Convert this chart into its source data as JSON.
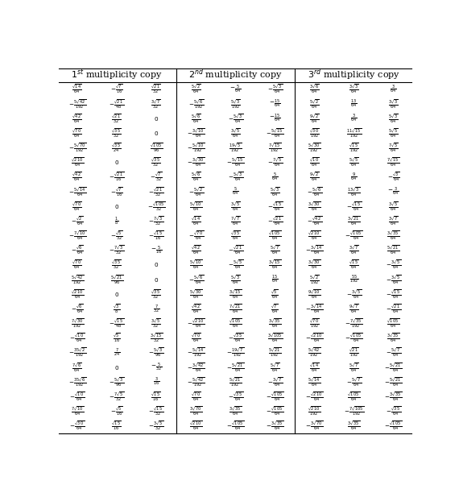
{
  "col_headers": [
    "$1^{st}$ multiplicity copy",
    "$2^{nd}$ multiplicity copy",
    "$3^{rd}$ multiplicity copy"
  ],
  "col1": [
    [
      "\\frac{\\sqrt{14}}{64}",
      "-\\frac{\\sqrt{7}}{16}",
      "\\frac{\\sqrt{21}}{32}"
    ],
    [
      "-\\frac{5\\sqrt{42}}{192}",
      "-\\frac{\\sqrt{21}}{48}",
      "\\frac{3\\sqrt{7}}{32}"
    ],
    [
      "\\frac{\\sqrt{42}}{64}",
      "\\frac{\\sqrt{21}}{32}",
      "0"
    ],
    [
      "\\frac{\\sqrt{70}}{64}",
      "\\frac{\\sqrt{35}}{32}",
      "0"
    ],
    [
      "-\\frac{5\\sqrt{70}}{192}",
      "\\frac{\\sqrt{35}}{24}",
      "\\frac{\\sqrt{105}}{96}"
    ],
    [
      "\\frac{\\sqrt{210}}{64}",
      "0",
      "\\frac{\\sqrt{35}}{32}"
    ],
    [
      "\\frac{\\sqrt{42}}{64}",
      "-\\frac{\\sqrt{21}}{16}",
      "-\\frac{\\sqrt{7}}{32}"
    ],
    [
      "-\\frac{5\\sqrt{14}}{64}",
      "-\\frac{\\sqrt{7}}{16}",
      "-\\frac{\\sqrt{21}}{32}"
    ],
    [
      "\\frac{\\sqrt{70}}{64}",
      "0",
      "-\\frac{\\sqrt{105}}{32}"
    ],
    [
      "-\\frac{\\sqrt{2}}{64}",
      "\\frac{1}{8}",
      "-\\frac{7\\sqrt{3}}{32}"
    ],
    [
      "-\\frac{7\\sqrt{10}}{64}",
      "-\\frac{\\sqrt{5}}{32}",
      "-\\frac{\\sqrt{15}}{16}"
    ],
    [
      "-\\frac{\\sqrt{6}}{64}",
      "-\\frac{7\\sqrt{3}}{32}",
      "-\\frac{5}{16}"
    ],
    [
      "\\frac{\\sqrt{70}}{64}",
      "\\frac{\\sqrt{35}}{32}",
      "0"
    ],
    [
      "\\frac{5\\sqrt{42}}{192}",
      "\\frac{5\\sqrt{21}}{96}",
      "0"
    ],
    [
      "\\frac{\\sqrt{210}}{64}",
      "0",
      "\\frac{\\sqrt{35}}{32}"
    ],
    [
      "-\\frac{\\sqrt{6}}{64}",
      "\\frac{\\sqrt{3}}{8}",
      "\\frac{7}{32}"
    ],
    [
      "\\frac{7\\sqrt{30}}{192}",
      "-\\frac{\\sqrt{15}}{48}",
      "\\frac{3\\sqrt{5}}{32}"
    ],
    [
      "-\\frac{\\sqrt{10}}{64}",
      "\\frac{\\sqrt{5}}{16}",
      "\\frac{3\\sqrt{15}}{32}"
    ],
    [
      "-\\frac{35\\sqrt{2}}{192}",
      "\\frac{7}{24}",
      "-\\frac{5\\sqrt{3}}{96}"
    ],
    [
      "\\frac{7\\sqrt{6}}{64}",
      "0",
      "-\\frac{5}{32}"
    ],
    [
      "-\\frac{35\\sqrt{6}}{192}",
      "-\\frac{5\\sqrt{3}}{96}",
      "\\frac{3}{16}"
    ],
    [
      "-\\frac{\\sqrt{10}}{64}",
      "-\\frac{7\\sqrt{5}}{32}",
      "\\frac{\\sqrt{15}}{16}"
    ],
    [
      "\\frac{7\\sqrt{10}}{64}",
      "-\\frac{\\sqrt{5}}{16}",
      "-\\frac{\\sqrt{15}}{32}"
    ],
    [
      "-\\frac{\\sqrt{30}}{64}",
      "\\frac{\\sqrt{15}}{16}",
      "-\\frac{3\\sqrt{5}}{32}"
    ]
  ],
  "col2": [
    [
      "\\frac{5\\sqrt{2}}{64}",
      "-\\frac{5}{64}",
      "-\\frac{5\\sqrt{3}}{64}"
    ],
    [
      "-\\frac{5\\sqrt{6}}{192}",
      "\\frac{5\\sqrt{3}}{192}",
      "-\\frac{15}{64}"
    ],
    [
      "\\frac{5\\sqrt{6}}{64}",
      "-\\frac{5\\sqrt{3}}{64}",
      "-\\frac{15}{64}"
    ],
    [
      "-\\frac{3\\sqrt{10}}{64}",
      "\\frac{3\\sqrt{5}}{64}",
      "-\\frac{5\\sqrt{15}}{64}"
    ],
    [
      "-\\frac{5\\sqrt{10}}{192}",
      "\\frac{19\\sqrt{5}}{192}",
      "\\frac{7\\sqrt{15}}{192}"
    ],
    [
      "-\\frac{3\\sqrt{30}}{64}",
      "-\\frac{5\\sqrt{15}}{64}",
      "-\\frac{7\\sqrt{5}}{64}"
    ],
    [
      "\\frac{5\\sqrt{6}}{64}",
      "-\\frac{5\\sqrt{3}}{64}",
      "\\frac{5}{64}"
    ],
    [
      "-\\frac{5\\sqrt{2}}{64}",
      "\\frac{5}{64}",
      "\\frac{5\\sqrt{3}}{64}"
    ],
    [
      "\\frac{5\\sqrt{10}}{64}",
      "\\frac{3\\sqrt{5}}{64}",
      "-\\frac{\\sqrt{15}}{64}"
    ],
    [
      "\\frac{\\sqrt{14}}{64}",
      "\\frac{7\\sqrt{7}}{64}",
      "-\\frac{\\sqrt{21}}{64}"
    ],
    [
      "-\\frac{\\sqrt{70}}{64}",
      "\\frac{\\sqrt{35}}{64}",
      "\\frac{\\sqrt{105}}{64}"
    ],
    [
      "\\frac{\\sqrt{42}}{64}",
      "-\\frac{\\sqrt{21}}{64}",
      "\\frac{5\\sqrt{7}}{64}"
    ],
    [
      "\\frac{5\\sqrt{10}}{64}",
      "-\\frac{5\\sqrt{5}}{64}",
      "\\frac{3\\sqrt{15}}{64}"
    ],
    [
      "-\\frac{5\\sqrt{6}}{64}",
      "\\frac{5\\sqrt{3}}{64}",
      "\\frac{15}{64}"
    ],
    [
      "\\frac{5\\sqrt{30}}{64}",
      "\\frac{3\\sqrt{15}}{64}",
      "\\frac{\\sqrt{5}}{64}"
    ],
    [
      "\\frac{\\sqrt{42}}{64}",
      "\\frac{7\\sqrt{21}}{64}",
      "\\frac{\\sqrt{7}}{64}"
    ],
    [
      "-\\frac{\\sqrt{210}}{64}",
      "\\frac{\\sqrt{105}}{64}",
      "\\frac{3\\sqrt{35}}{64}"
    ],
    [
      "\\frac{\\sqrt{70}}{64}",
      "-\\frac{\\sqrt{35}}{64}",
      "\\frac{3\\sqrt{105}}{64}"
    ],
    [
      "-\\frac{5\\sqrt{14}}{192}",
      "-\\frac{19\\sqrt{7}}{192}",
      "\\frac{5\\sqrt{21}}{192}"
    ],
    [
      "-\\frac{3\\sqrt{42}}{64}",
      "-\\frac{5\\sqrt{21}}{64}",
      "\\frac{5\\sqrt{7}}{64}"
    ],
    [
      "-\\frac{5\\sqrt{42}}{192}",
      "\\frac{5\\sqrt{21}}{192}",
      "-\\frac{3\\sqrt{7}}{64}"
    ],
    [
      "\\frac{\\sqrt{70}}{64}",
      "-\\frac{\\sqrt{35}}{64}",
      "-\\frac{\\sqrt{105}}{64}"
    ],
    [
      "\\frac{3\\sqrt{70}}{64}",
      "\\frac{3\\sqrt{35}}{64}",
      "-\\frac{\\sqrt{105}}{64}"
    ],
    [
      "\\frac{\\sqrt{210}}{64}",
      "-\\frac{\\sqrt{105}}{64}",
      "-\\frac{3\\sqrt{35}}{64}"
    ]
  ],
  "col3": [
    [
      "\\frac{3\\sqrt{6}}{64}",
      "\\frac{3\\sqrt{3}}{64}",
      "\\frac{3}{64}"
    ],
    [
      "\\frac{5\\sqrt{2}}{64}",
      "\\frac{13}{64}",
      "\\frac{3\\sqrt{3}}{64}"
    ],
    [
      "\\frac{9\\sqrt{2}}{64}",
      "\\frac{3}{64}",
      "\\frac{5\\sqrt{3}}{64}"
    ],
    [
      "\\frac{\\sqrt{30}}{192}",
      "\\frac{11\\sqrt{15}}{192}",
      "\\frac{5\\sqrt{5}}{64}"
    ],
    [
      "\\frac{5\\sqrt{30}}{192}",
      "\\frac{\\sqrt{15}}{192}",
      "\\frac{7\\sqrt{5}}{64}"
    ],
    [
      "\\frac{\\sqrt{10}}{64}",
      "\\frac{5\\sqrt{5}}{64}",
      "\\frac{7\\sqrt{15}}{64}"
    ],
    [
      "\\frac{9\\sqrt{2}}{64}",
      "\\frac{9}{64}",
      "-\\frac{\\sqrt{3}}{64}"
    ],
    [
      "-\\frac{5\\sqrt{6}}{64}",
      "\\frac{13\\sqrt{3}}{64}",
      "-\\frac{3}{64}"
    ],
    [
      "\\frac{3\\sqrt{30}}{64}",
      "-\\frac{\\sqrt{15}}{64}",
      "\\frac{3\\sqrt{5}}{64}"
    ],
    [
      "-\\frac{\\sqrt{42}}{64}",
      "\\frac{3\\sqrt{21}}{64}",
      "\\frac{3\\sqrt{7}}{64}"
    ],
    [
      "\\frac{\\sqrt{210}}{64}",
      "-\\frac{\\sqrt{105}}{64}",
      "\\frac{3\\sqrt{35}}{64}"
    ],
    [
      "-\\frac{3\\sqrt{14}}{64}",
      "\\frac{3\\sqrt{7}}{64}",
      "\\frac{5\\sqrt{21}}{64}"
    ],
    [
      "\\frac{3\\sqrt{30}}{64}",
      "\\frac{\\sqrt{15}}{64}",
      "-\\frac{3\\sqrt{5}}{64}"
    ],
    [
      "\\frac{5\\sqrt{2}}{192}",
      "\\frac{55}{192}",
      "-\\frac{3\\sqrt{5}}{64}"
    ],
    [
      "\\frac{9\\sqrt{10}}{64}",
      "-\\frac{3\\sqrt{5}}{64}",
      "-\\frac{\\sqrt{15}}{64}"
    ],
    [
      "-\\frac{3\\sqrt{14}}{64}",
      "\\frac{9\\sqrt{7}}{64}",
      "-\\frac{\\sqrt{21}}{64}"
    ],
    [
      "\\frac{\\sqrt{70}}{192}",
      "-\\frac{7\\sqrt{35}}{192}",
      "\\frac{\\sqrt{105}}{64}"
    ],
    [
      "-\\frac{\\sqrt{210}}{64}",
      "-\\frac{\\sqrt{105}}{64}",
      "\\frac{3\\sqrt{35}}{64}"
    ],
    [
      "\\frac{5\\sqrt{42}}{192}",
      "\\frac{\\sqrt{21}}{192}",
      "-\\frac{5\\sqrt{7}}{64}"
    ],
    [
      "\\frac{\\sqrt{14}}{64}",
      "\\frac{5\\sqrt{7}}{64}",
      "-\\frac{5\\sqrt{21}}{64}"
    ],
    [
      "\\frac{5\\sqrt{14}}{64}",
      "-\\frac{5\\sqrt{7}}{64}",
      "-\\frac{5\\sqrt{21}}{64}"
    ],
    [
      "-\\frac{\\sqrt{210}}{64}",
      "\\frac{\\sqrt{105}}{64}",
      "-\\frac{3\\sqrt{35}}{64}"
    ],
    [
      "\\frac{\\sqrt{210}}{192}",
      "-\\frac{7\\sqrt{105}}{192}",
      "-\\frac{\\sqrt{35}}{64}"
    ],
    [
      "-\\frac{3\\sqrt{70}}{64}",
      "\\frac{3\\sqrt{35}}{64}",
      "-\\frac{\\sqrt{105}}{64}"
    ]
  ],
  "n_rows": 24,
  "header_fontsize": 8,
  "cell_fontsize": 5.2,
  "fig_width": 5.7,
  "fig_height": 6.07,
  "dpi": 100
}
